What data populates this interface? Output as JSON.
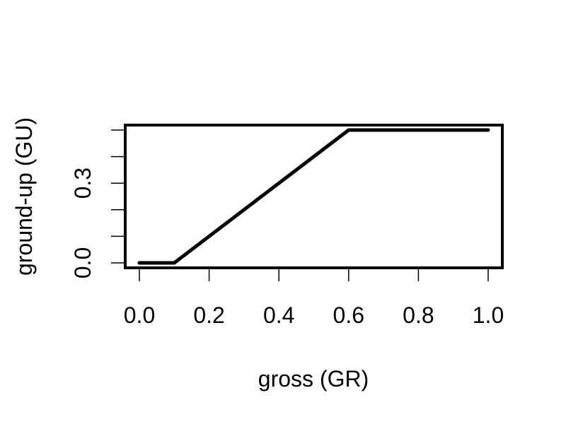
{
  "chart_data": {
    "type": "line",
    "title": "",
    "xlabel": "gross (GR)",
    "ylabel": "ground-up (GU)",
    "xlim": [
      0.0,
      1.0
    ],
    "ylim": [
      0.0,
      0.5
    ],
    "x_ticks": [
      0.0,
      0.2,
      0.4,
      0.6,
      0.8,
      1.0
    ],
    "x_tick_labels": [
      "0.0",
      "0.2",
      "0.4",
      "0.6",
      "0.8",
      "1.0"
    ],
    "y_ticks": [
      0.0,
      0.1,
      0.2,
      0.3,
      0.4,
      0.5
    ],
    "y_tick_labels": [
      "0.0",
      "",
      "",
      "0.3",
      "",
      ""
    ],
    "grid": false,
    "legend": "none",
    "series": [
      {
        "color": "#000000",
        "points": [
          {
            "x": 0.0,
            "y": 0.0
          },
          {
            "x": 0.1,
            "y": 0.0
          },
          {
            "x": 0.6,
            "y": 0.5
          },
          {
            "x": 1.0,
            "y": 0.5
          }
        ]
      }
    ]
  }
}
